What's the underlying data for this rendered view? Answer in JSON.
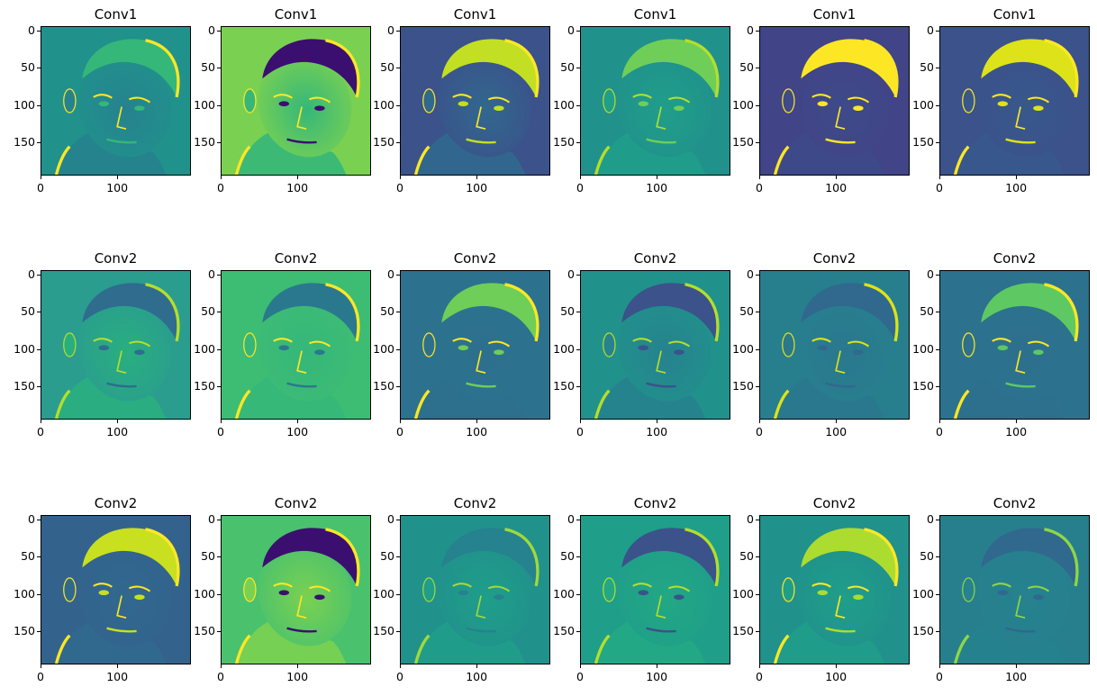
{
  "figure": {
    "colormap": "viridis",
    "colors": {
      "low": "#440154",
      "dark_blue": "#3b528b",
      "mid": "#21918c",
      "green": "#5ec962",
      "high": "#fde725"
    },
    "y_ticks": [
      "0",
      "50",
      "100",
      "150"
    ],
    "x_ticks": [
      "0",
      "100"
    ],
    "rows": [
      {
        "panels": [
          {
            "title": "Conv1",
            "bg": "#21918c",
            "face": "#26828e",
            "hair": "#35b779",
            "edge": "#fde725"
          },
          {
            "title": "Conv1",
            "bg": "#7ad151",
            "face": "#35b779",
            "hair": "#3b0f70",
            "edge": "#fde725"
          },
          {
            "title": "Conv1",
            "bg": "#3b528b",
            "face": "#31688e",
            "hair": "#c2df23",
            "edge": "#fde725"
          },
          {
            "title": "Conv1",
            "bg": "#21918c",
            "face": "#1f9e89",
            "hair": "#6ece58",
            "edge": "#b5de2b"
          },
          {
            "title": "Conv1",
            "bg": "#414487",
            "face": "#3e4a89",
            "hair": "#fde725",
            "edge": "#fde725"
          },
          {
            "title": "Conv1",
            "bg": "#3b528b",
            "face": "#38588c",
            "hair": "#dde318",
            "edge": "#fde725"
          }
        ]
      },
      {
        "panels": [
          {
            "title": "Conv2",
            "bg": "#2a9d8f",
            "face": "#29af7f",
            "hair": "#2f6c8e",
            "edge": "#b5de2b"
          },
          {
            "title": "Conv2",
            "bg": "#3dbc74",
            "face": "#35b779",
            "hair": "#2a788e",
            "edge": "#fde725"
          },
          {
            "title": "Conv2",
            "bg": "#2c728e",
            "face": "#2d708e",
            "hair": "#6ece58",
            "edge": "#fde725"
          },
          {
            "title": "Conv2",
            "bg": "#21918c",
            "face": "#26828e",
            "hair": "#3b528b",
            "edge": "#b5de2b"
          },
          {
            "title": "Conv2",
            "bg": "#277f8e",
            "face": "#2a788e",
            "hair": "#31688e",
            "edge": "#dde318"
          },
          {
            "title": "Conv2",
            "bg": "#2c728e",
            "face": "#2d708e",
            "hair": "#5ec962",
            "edge": "#fde725"
          }
        ]
      },
      {
        "panels": [
          {
            "title": "Conv2",
            "bg": "#33638d",
            "face": "#31688e",
            "hair": "#c8e020",
            "edge": "#fde725"
          },
          {
            "title": "Conv2",
            "bg": "#4ac16d",
            "face": "#7ad151",
            "hair": "#3b0f70",
            "edge": "#fde725"
          },
          {
            "title": "Conv2",
            "bg": "#21918c",
            "face": "#1f9e89",
            "hair": "#26828e",
            "edge": "#a0da39"
          },
          {
            "title": "Conv2",
            "bg": "#1f9e89",
            "face": "#22a884",
            "hair": "#3b528b",
            "edge": "#b5de2b"
          },
          {
            "title": "Conv2",
            "bg": "#21918c",
            "face": "#1f9e89",
            "hair": "#addc30",
            "edge": "#fde725"
          },
          {
            "title": "Conv2",
            "bg": "#277f8e",
            "face": "#26828e",
            "hair": "#31688e",
            "edge": "#8fd744"
          }
        ]
      }
    ]
  }
}
